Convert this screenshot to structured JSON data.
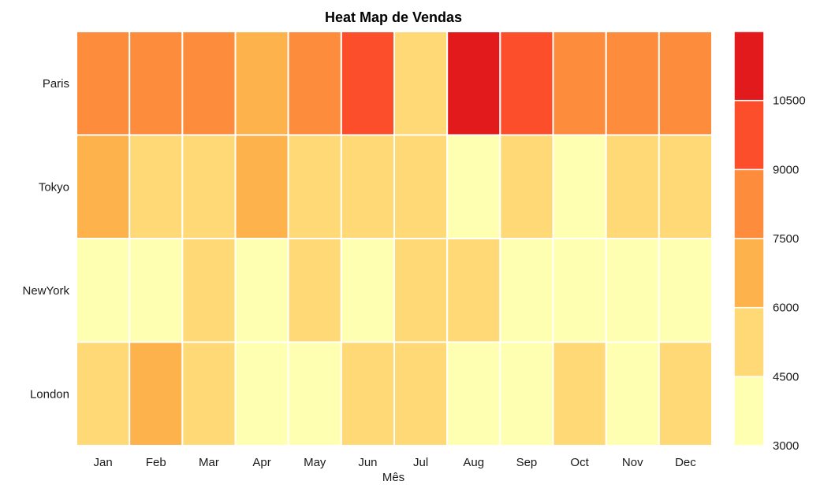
{
  "chart_data": {
    "type": "heatmap",
    "title": "Heat Map de Vendas",
    "xlabel": "Mês",
    "ylabel": "",
    "x_categories": [
      "Jan",
      "Feb",
      "Mar",
      "Apr",
      "May",
      "Jun",
      "Jul",
      "Aug",
      "Sep",
      "Oct",
      "Nov",
      "Dec"
    ],
    "y_categories": [
      "Paris",
      "Tokyo",
      "NewYork",
      "London"
    ],
    "values": [
      [
        8200,
        8300,
        8100,
        6800,
        8000,
        9900,
        5300,
        11000,
        9800,
        8100,
        8200,
        8300
      ],
      [
        6700,
        5400,
        5300,
        6600,
        5300,
        5200,
        5200,
        3600,
        5300,
        3700,
        5300,
        5400
      ],
      [
        4300,
        4100,
        5200,
        4200,
        5300,
        4300,
        5200,
        5200,
        4200,
        4100,
        4300,
        4200
      ],
      [
        5300,
        6700,
        5200,
        4200,
        4100,
        5200,
        5200,
        4200,
        4100,
        5300,
        4200,
        5300
      ]
    ],
    "scale": {
      "min": 3000,
      "max": 12000,
      "breaks": [
        3000,
        4500,
        6000,
        7500,
        9000,
        10500
      ],
      "colors": [
        "#ffffb2",
        "#fed976",
        "#feb24c",
        "#fd8d3c",
        "#fc4e2a",
        "#e31a1c"
      ]
    },
    "legend": "right",
    "grid": false
  }
}
